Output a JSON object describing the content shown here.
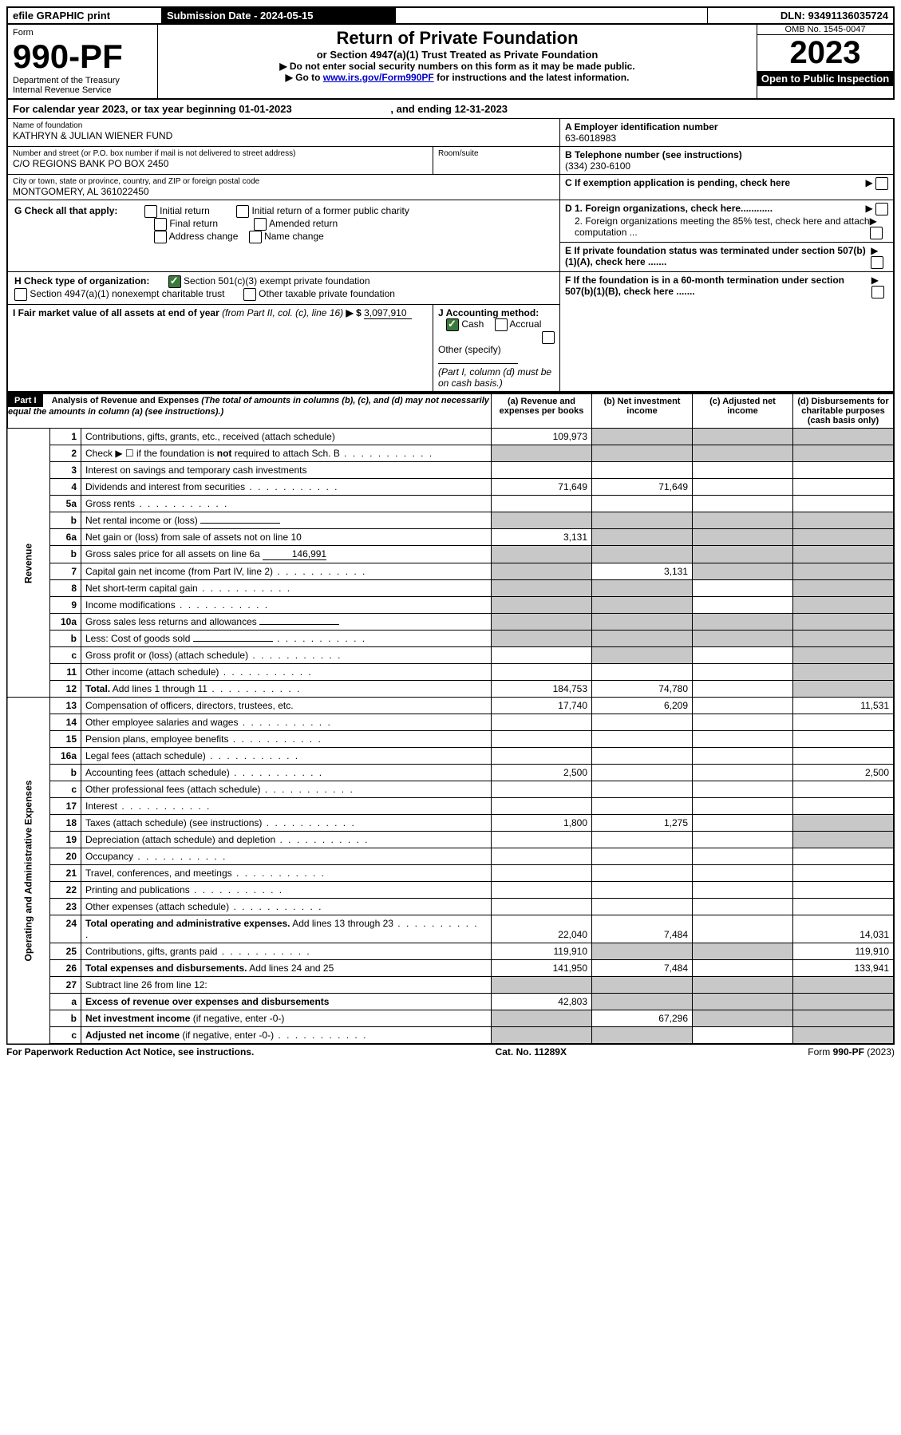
{
  "topbar": {
    "efile": "efile GRAPHIC print",
    "sub_label": "Submission Date - 2024-05-15",
    "dln": "DLN: 93491136035724"
  },
  "header": {
    "form_word": "Form",
    "form_num": "990-PF",
    "dept1": "Department of the Treasury",
    "dept2": "Internal Revenue Service",
    "title": "Return of Private Foundation",
    "subtitle": "or Section 4947(a)(1) Trust Treated as Private Foundation",
    "instr1": "▶ Do not enter social security numbers on this form as it may be made public.",
    "instr2_pre": "▶ Go to ",
    "instr2_link": "www.irs.gov/Form990PF",
    "instr2_post": " for instructions and the latest information.",
    "omb": "OMB No. 1545-0047",
    "year": "2023",
    "open": "Open to Public Inspection"
  },
  "cal": {
    "text_pre": "For calendar year 2023, or tax year beginning ",
    "begin": "01-01-2023",
    "mid": ", and ending ",
    "end": "12-31-2023"
  },
  "name_block": {
    "label": "Name of foundation",
    "value": "KATHRYN & JULIAN WIENER FUND",
    "addr_label": "Number and street (or P.O. box number if mail is not delivered to street address)",
    "addr": "C/O REGIONS BANK PO BOX 2450",
    "room_label": "Room/suite",
    "city_label": "City or town, state or province, country, and ZIP or foreign postal code",
    "city": "MONTGOMERY, AL  361022450"
  },
  "right_block": {
    "a_label": "A Employer identification number",
    "a_val": "63-6018983",
    "b_label": "B Telephone number (see instructions)",
    "b_val": "(334) 230-6100",
    "c_label": "C If exemption application is pending, check here",
    "d1": "D 1. Foreign organizations, check here............",
    "d2": "2. Foreign organizations meeting the 85% test, check here and attach computation ...",
    "e": "E  If private foundation status was terminated under section 507(b)(1)(A), check here .......",
    "f": "F  If the foundation is in a 60-month termination under section 507(b)(1)(B), check here ......."
  },
  "g": {
    "label": "G Check all that apply:",
    "opts": [
      "Initial return",
      "Final return",
      "Address change",
      "Initial return of a former public charity",
      "Amended return",
      "Name change"
    ]
  },
  "h": {
    "label": "H Check type of organization:",
    "opt1": "Section 501(c)(3) exempt private foundation",
    "opt2": "Section 4947(a)(1) nonexempt charitable trust",
    "opt3": "Other taxable private foundation"
  },
  "i": {
    "label_pre": "I Fair market value of all assets at end of year ",
    "label_ital": "(from Part II, col. (c), line 16)",
    "arrow": "▶ $",
    "val": "3,097,910"
  },
  "j": {
    "label": "J Accounting method:",
    "cash": "Cash",
    "accrual": "Accrual",
    "other": "Other (specify)",
    "note": "(Part I, column (d) must be on cash basis.)"
  },
  "part1": {
    "label": "Part I",
    "title": "Analysis of Revenue and Expenses",
    "note": " (The total of amounts in columns (b), (c), and (d) may not necessarily equal the amounts in column (a) (see instructions).)",
    "col_a": "(a)  Revenue and expenses per books",
    "col_b": "(b)  Net investment income",
    "col_c": "(c)  Adjusted net income",
    "col_d": "(d)  Disbursements for charitable purposes (cash basis only)"
  },
  "side": {
    "rev": "Revenue",
    "exp": "Operating and Administrative Expenses"
  },
  "rows": [
    {
      "n": "1",
      "d": "Contributions, gifts, grants, etc., received (attach schedule)",
      "a": "109,973",
      "grey_bcd": true
    },
    {
      "n": "2",
      "d": "Check ▶ ☐ if the foundation is <b>not</b> required to attach Sch. B",
      "dots": true,
      "grey_all": true
    },
    {
      "n": "3",
      "d": "Interest on savings and temporary cash investments"
    },
    {
      "n": "4",
      "d": "Dividends and interest from securities",
      "dots": true,
      "a": "71,649",
      "b": "71,649"
    },
    {
      "n": "5a",
      "d": "Gross rents",
      "dots": true
    },
    {
      "n": "b",
      "d": "Net rental income or (loss)",
      "inline_line": true,
      "grey_all": true
    },
    {
      "n": "6a",
      "d": "Net gain or (loss) from sale of assets not on line 10",
      "a": "3,131",
      "grey_bcd": true
    },
    {
      "n": "b",
      "d": "Gross sales price for all assets on line 6a",
      "inline_val": "146,991",
      "grey_all": true
    },
    {
      "n": "7",
      "d": "Capital gain net income (from Part IV, line 2)",
      "dots": true,
      "grey_a": true,
      "b": "3,131",
      "grey_cd": true
    },
    {
      "n": "8",
      "d": "Net short-term capital gain",
      "dots": true,
      "grey_ab": true,
      "grey_d": true
    },
    {
      "n": "9",
      "d": "Income modifications",
      "dots": true,
      "grey_ab": true,
      "grey_d": true
    },
    {
      "n": "10a",
      "d": "Gross sales less returns and allowances",
      "inline_line": true,
      "grey_all": true
    },
    {
      "n": "b",
      "d": "Less: Cost of goods sold",
      "dots": true,
      "inline_line": true,
      "grey_all": true
    },
    {
      "n": "c",
      "d": "Gross profit or (loss) (attach schedule)",
      "dots": true,
      "grey_b": true,
      "grey_d": true
    },
    {
      "n": "11",
      "d": "Other income (attach schedule)",
      "dots": true,
      "grey_d": true
    },
    {
      "n": "12",
      "d": "<b>Total.</b> Add lines 1 through 11",
      "dots": true,
      "a": "184,753",
      "b": "74,780",
      "grey_d": true
    }
  ],
  "exp_rows": [
    {
      "n": "13",
      "d": "Compensation of officers, directors, trustees, etc.",
      "a": "17,740",
      "b": "6,209",
      "dd": "11,531"
    },
    {
      "n": "14",
      "d": "Other employee salaries and wages",
      "dots": true
    },
    {
      "n": "15",
      "d": "Pension plans, employee benefits",
      "dots": true
    },
    {
      "n": "16a",
      "d": "Legal fees (attach schedule)",
      "dots": true
    },
    {
      "n": "b",
      "d": "Accounting fees (attach schedule)",
      "dots": true,
      "a": "2,500",
      "dd": "2,500"
    },
    {
      "n": "c",
      "d": "Other professional fees (attach schedule)",
      "dots": true
    },
    {
      "n": "17",
      "d": "Interest",
      "dots": true
    },
    {
      "n": "18",
      "d": "Taxes (attach schedule) (see instructions)",
      "dots": true,
      "a": "1,800",
      "b": "1,275",
      "grey_d": true
    },
    {
      "n": "19",
      "d": "Depreciation (attach schedule) and depletion",
      "dots": true,
      "grey_d": true
    },
    {
      "n": "20",
      "d": "Occupancy",
      "dots": true
    },
    {
      "n": "21",
      "d": "Travel, conferences, and meetings",
      "dots": true
    },
    {
      "n": "22",
      "d": "Printing and publications",
      "dots": true
    },
    {
      "n": "23",
      "d": "Other expenses (attach schedule)",
      "dots": true
    },
    {
      "n": "24",
      "d": "<b>Total operating and administrative expenses.</b> Add lines 13 through 23",
      "dots": true,
      "a": "22,040",
      "b": "7,484",
      "dd": "14,031"
    },
    {
      "n": "25",
      "d": "Contributions, gifts, grants paid",
      "dots": true,
      "a": "119,910",
      "grey_bc": true,
      "dd": "119,910"
    },
    {
      "n": "26",
      "d": "<b>Total expenses and disbursements.</b> Add lines 24 and 25",
      "a": "141,950",
      "b": "7,484",
      "dd": "133,941"
    },
    {
      "n": "27",
      "d": "Subtract line 26 from line 12:",
      "grey_all": true
    },
    {
      "n": "a",
      "d": "<b>Excess of revenue over expenses and disbursements</b>",
      "a": "42,803",
      "grey_bcd": true
    },
    {
      "n": "b",
      "d": "<b>Net investment income</b> (if negative, enter -0-)",
      "grey_a": true,
      "b": "67,296",
      "grey_cd": true
    },
    {
      "n": "c",
      "d": "<b>Adjusted net income</b> (if negative, enter -0-)",
      "dots": true,
      "grey_ab": true,
      "grey_d": true
    }
  ],
  "footer": {
    "left": "For Paperwork Reduction Act Notice, see instructions.",
    "mid": "Cat. No. 11289X",
    "right": "Form 990-PF (2023)"
  }
}
